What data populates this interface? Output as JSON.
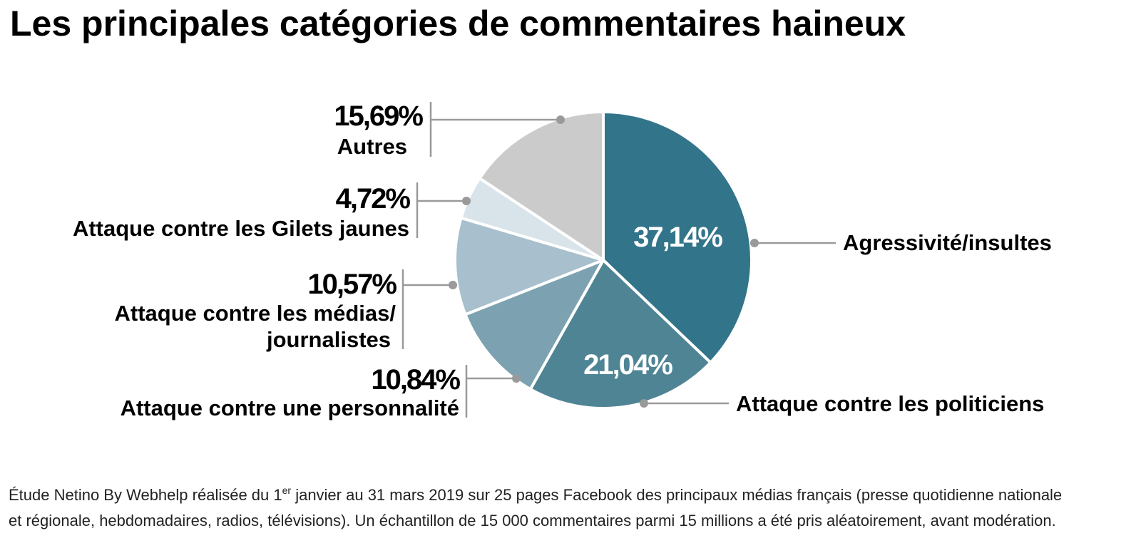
{
  "chart_data": {
    "type": "pie",
    "title": "Les principales catégories de commentaires haineux",
    "slices": [
      {
        "label": "Agressivité/insultes",
        "value": 37.14,
        "value_label": "37,14%",
        "color": "#327489"
      },
      {
        "label": "Attaque contre les politiciens",
        "value": 21.04,
        "value_label": "21,04%",
        "color": "#4f8495"
      },
      {
        "label": "Attaque contre une personnalité",
        "value": 10.84,
        "value_label": "10,84%",
        "color": "#7ca2b1"
      },
      {
        "label": "Attaque contre les médias/ journalistes",
        "label_lines": [
          "Attaque contre les médias/",
          "journalistes"
        ],
        "value": 10.57,
        "value_label": "10,57%",
        "color": "#a8c0cd"
      },
      {
        "label": "Attaque contre les Gilets jaunes",
        "value": 4.72,
        "value_label": "4,72%",
        "color": "#d9e4ea"
      },
      {
        "label": "Autres",
        "value": 15.69,
        "value_label": "15,69%",
        "color": "#cbcbcb"
      }
    ],
    "source_note": {
      "line1_before_sup": "Étude Netino By Webhelp réalisée du 1",
      "line1_sup": "er",
      "line1_after_sup": " janvier au 31 mars 2019 sur 25 pages Facebook des principaux médias français (presse quotidienne nationale",
      "line2": "et régionale, hebdomadaires, radios, télévisions). Un échantillon de 15 000 commentaires parmi 15 millions a été pris aléatoirement, avant modération."
    }
  }
}
